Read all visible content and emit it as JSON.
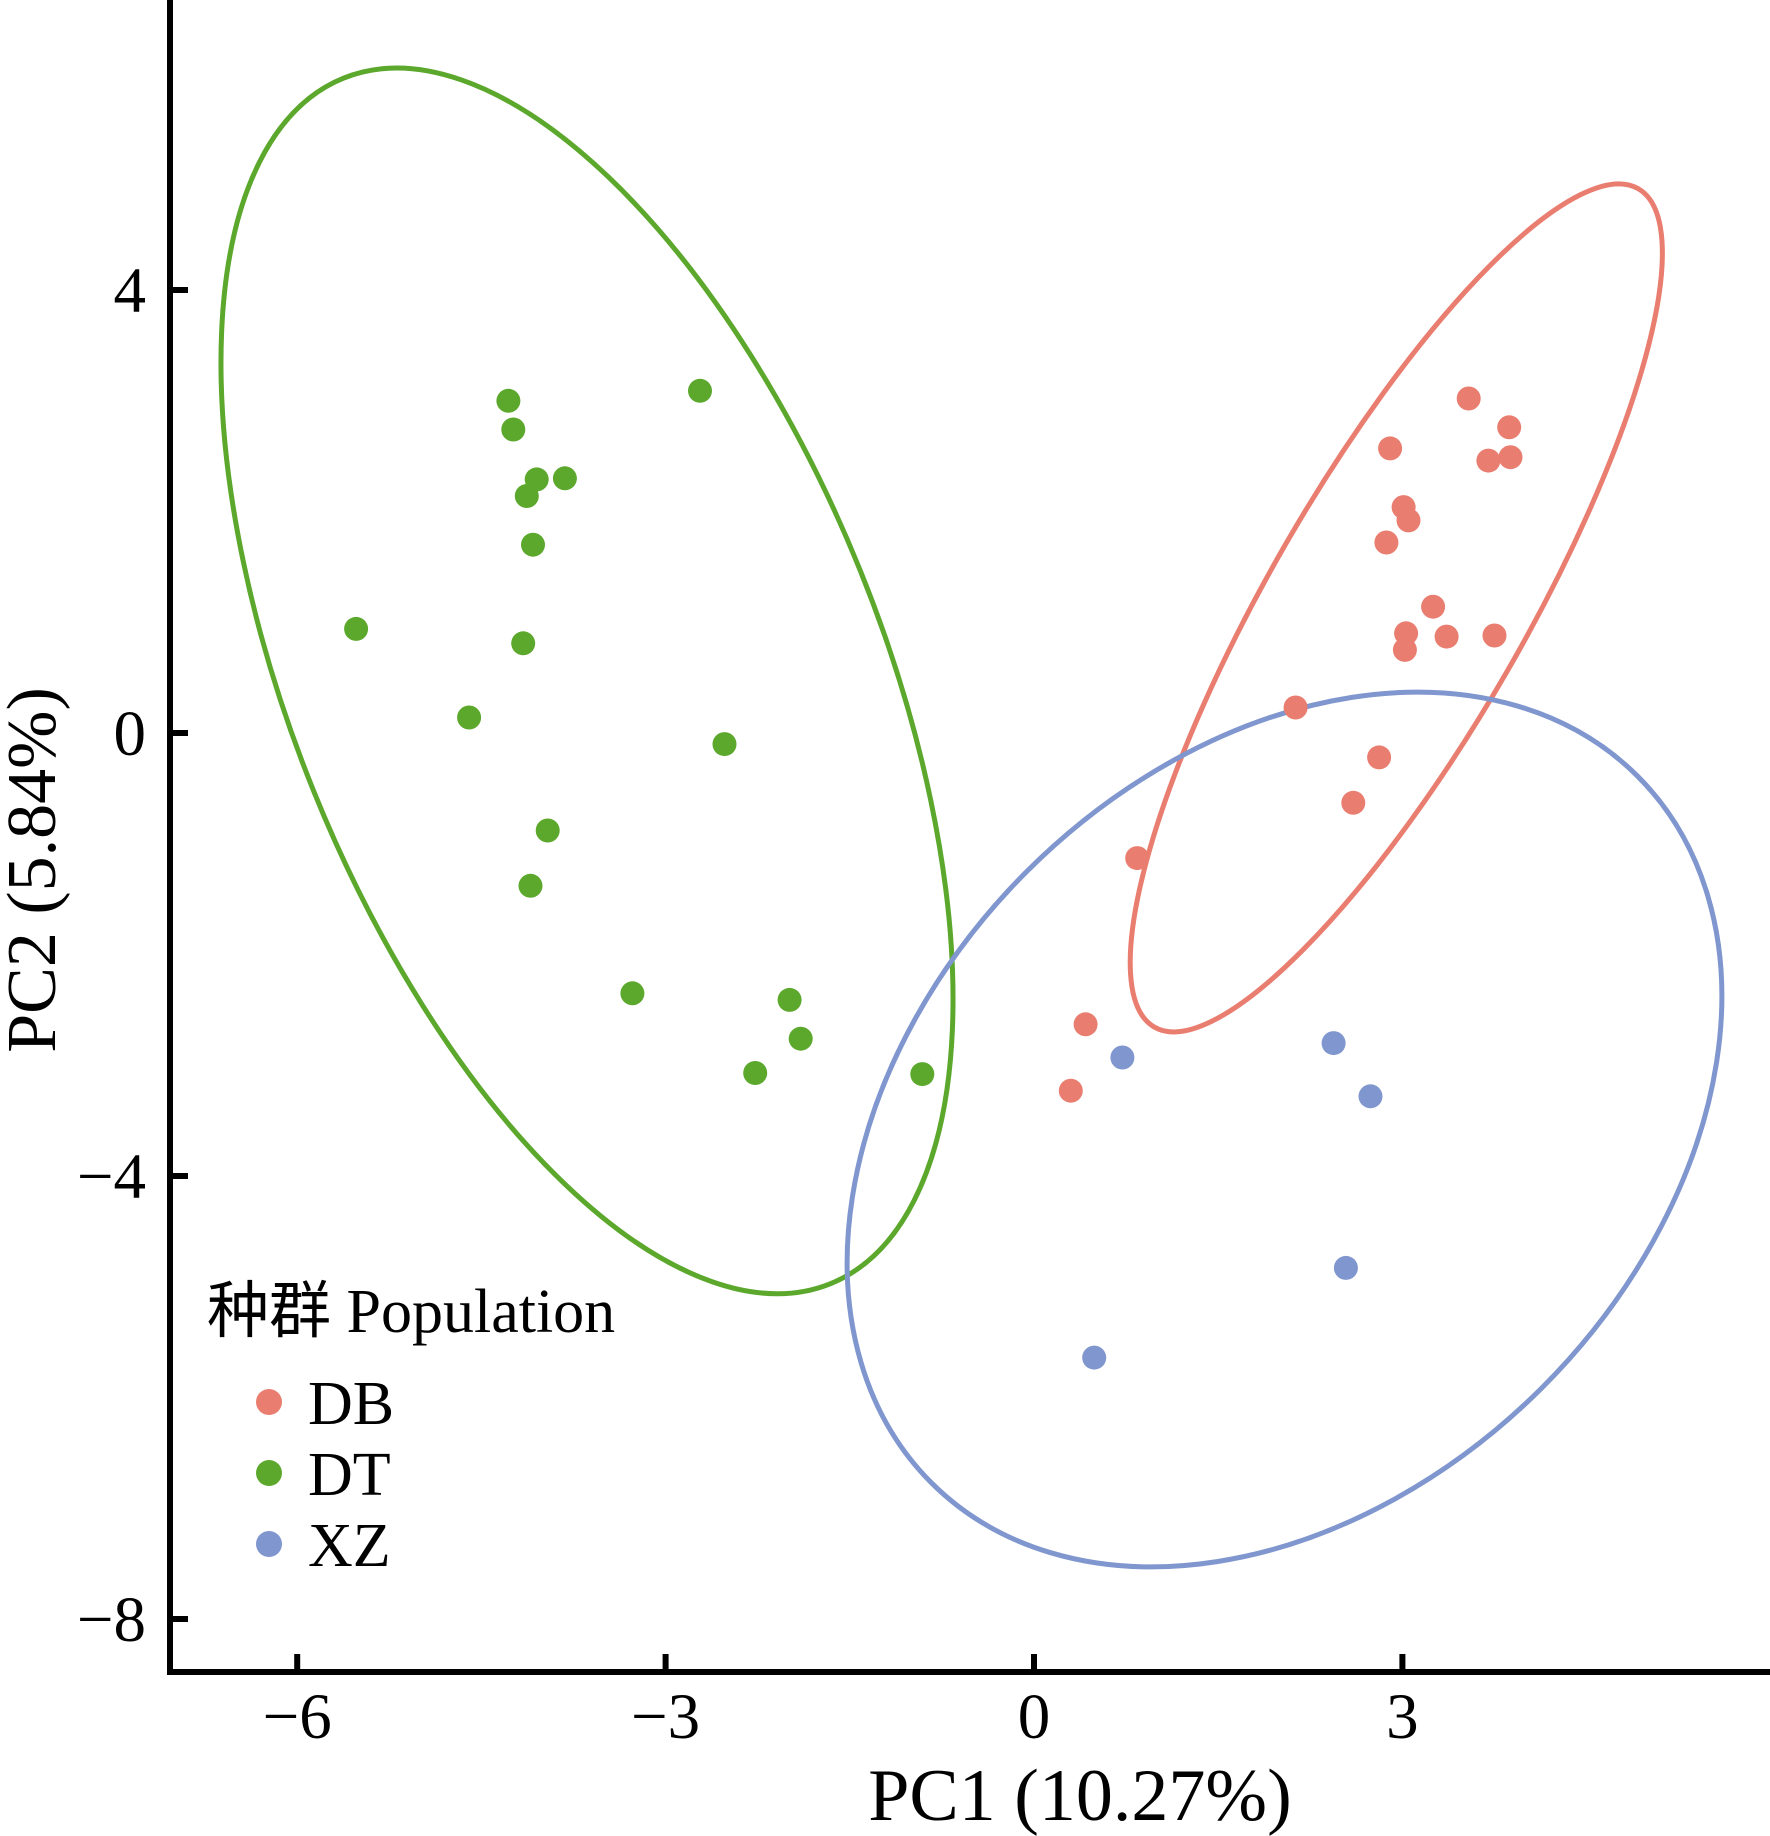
{
  "chart_data": {
    "type": "scatter",
    "xlabel": "PC1 (10.27%)",
    "ylabel": "PC2 (5.84%)",
    "xlim": [
      -7.0,
      6.0
    ],
    "ylim": [
      -8.5,
      6.6
    ],
    "grid": false,
    "x_ticks": [
      -6,
      -3,
      0,
      3
    ],
    "x_tick_labels": [
      "−6",
      "−3",
      "0",
      "3"
    ],
    "y_ticks": [
      4,
      0,
      -4,
      -8
    ],
    "y_tick_labels": [
      "4",
      "0",
      "−4",
      "−8"
    ],
    "legend": {
      "title": "种群 Population",
      "position": "bottom-left"
    },
    "series": [
      {
        "name": "DB",
        "color": "#E97D6F",
        "points": [
          [
            3.54,
            3.02
          ],
          [
            3.87,
            2.76
          ],
          [
            2.9,
            2.57
          ],
          [
            3.7,
            2.46
          ],
          [
            3.88,
            2.49
          ],
          [
            3.01,
            2.04
          ],
          [
            3.05,
            1.92
          ],
          [
            2.87,
            1.72
          ],
          [
            3.25,
            1.14
          ],
          [
            3.03,
            0.9
          ],
          [
            3.36,
            0.87
          ],
          [
            3.75,
            0.88
          ],
          [
            3.02,
            0.75
          ],
          [
            2.13,
            0.23
          ],
          [
            2.81,
            -0.22
          ],
          [
            2.6,
            -0.63
          ],
          [
            0.84,
            -1.13
          ],
          [
            0.42,
            -2.63
          ],
          [
            0.3,
            -3.23
          ]
        ],
        "ellipse": {
          "cx": 2.95,
          "cy": 1.13,
          "rx": 1.04,
          "ry": 4.37,
          "rotation_deg": 30
        }
      },
      {
        "name": "DT",
        "color": "#5BA82C",
        "points": [
          [
            -4.28,
            3.0
          ],
          [
            -4.24,
            2.74
          ],
          [
            -4.05,
            2.29
          ],
          [
            -3.82,
            2.3
          ],
          [
            -4.13,
            2.14
          ],
          [
            -4.08,
            1.7
          ],
          [
            -2.72,
            3.09
          ],
          [
            -5.52,
            0.94
          ],
          [
            -4.16,
            0.81
          ],
          [
            -4.6,
            0.14
          ],
          [
            -2.52,
            -0.1
          ],
          [
            -3.96,
            -0.88
          ],
          [
            -4.1,
            -1.38
          ],
          [
            -3.27,
            -2.35
          ],
          [
            -1.99,
            -2.41
          ],
          [
            -1.9,
            -2.76
          ],
          [
            -2.27,
            -3.07
          ],
          [
            -0.91,
            -3.08
          ]
        ],
        "ellipse": {
          "cx": -3.64,
          "cy": 0.47,
          "rx": 2.4,
          "ry": 5.87,
          "rotation_deg": -22
        }
      },
      {
        "name": "XZ",
        "color": "#8096CE",
        "points": [
          [
            0.72,
            -2.93
          ],
          [
            2.44,
            -2.8
          ],
          [
            2.74,
            -3.28
          ],
          [
            2.54,
            -4.83
          ],
          [
            0.49,
            -5.64
          ]
        ],
        "ellipse": {
          "cx": 2.04,
          "cy": -3.58,
          "rx": 2.97,
          "ry": 4.51,
          "rotation_deg": 45
        }
      }
    ]
  }
}
